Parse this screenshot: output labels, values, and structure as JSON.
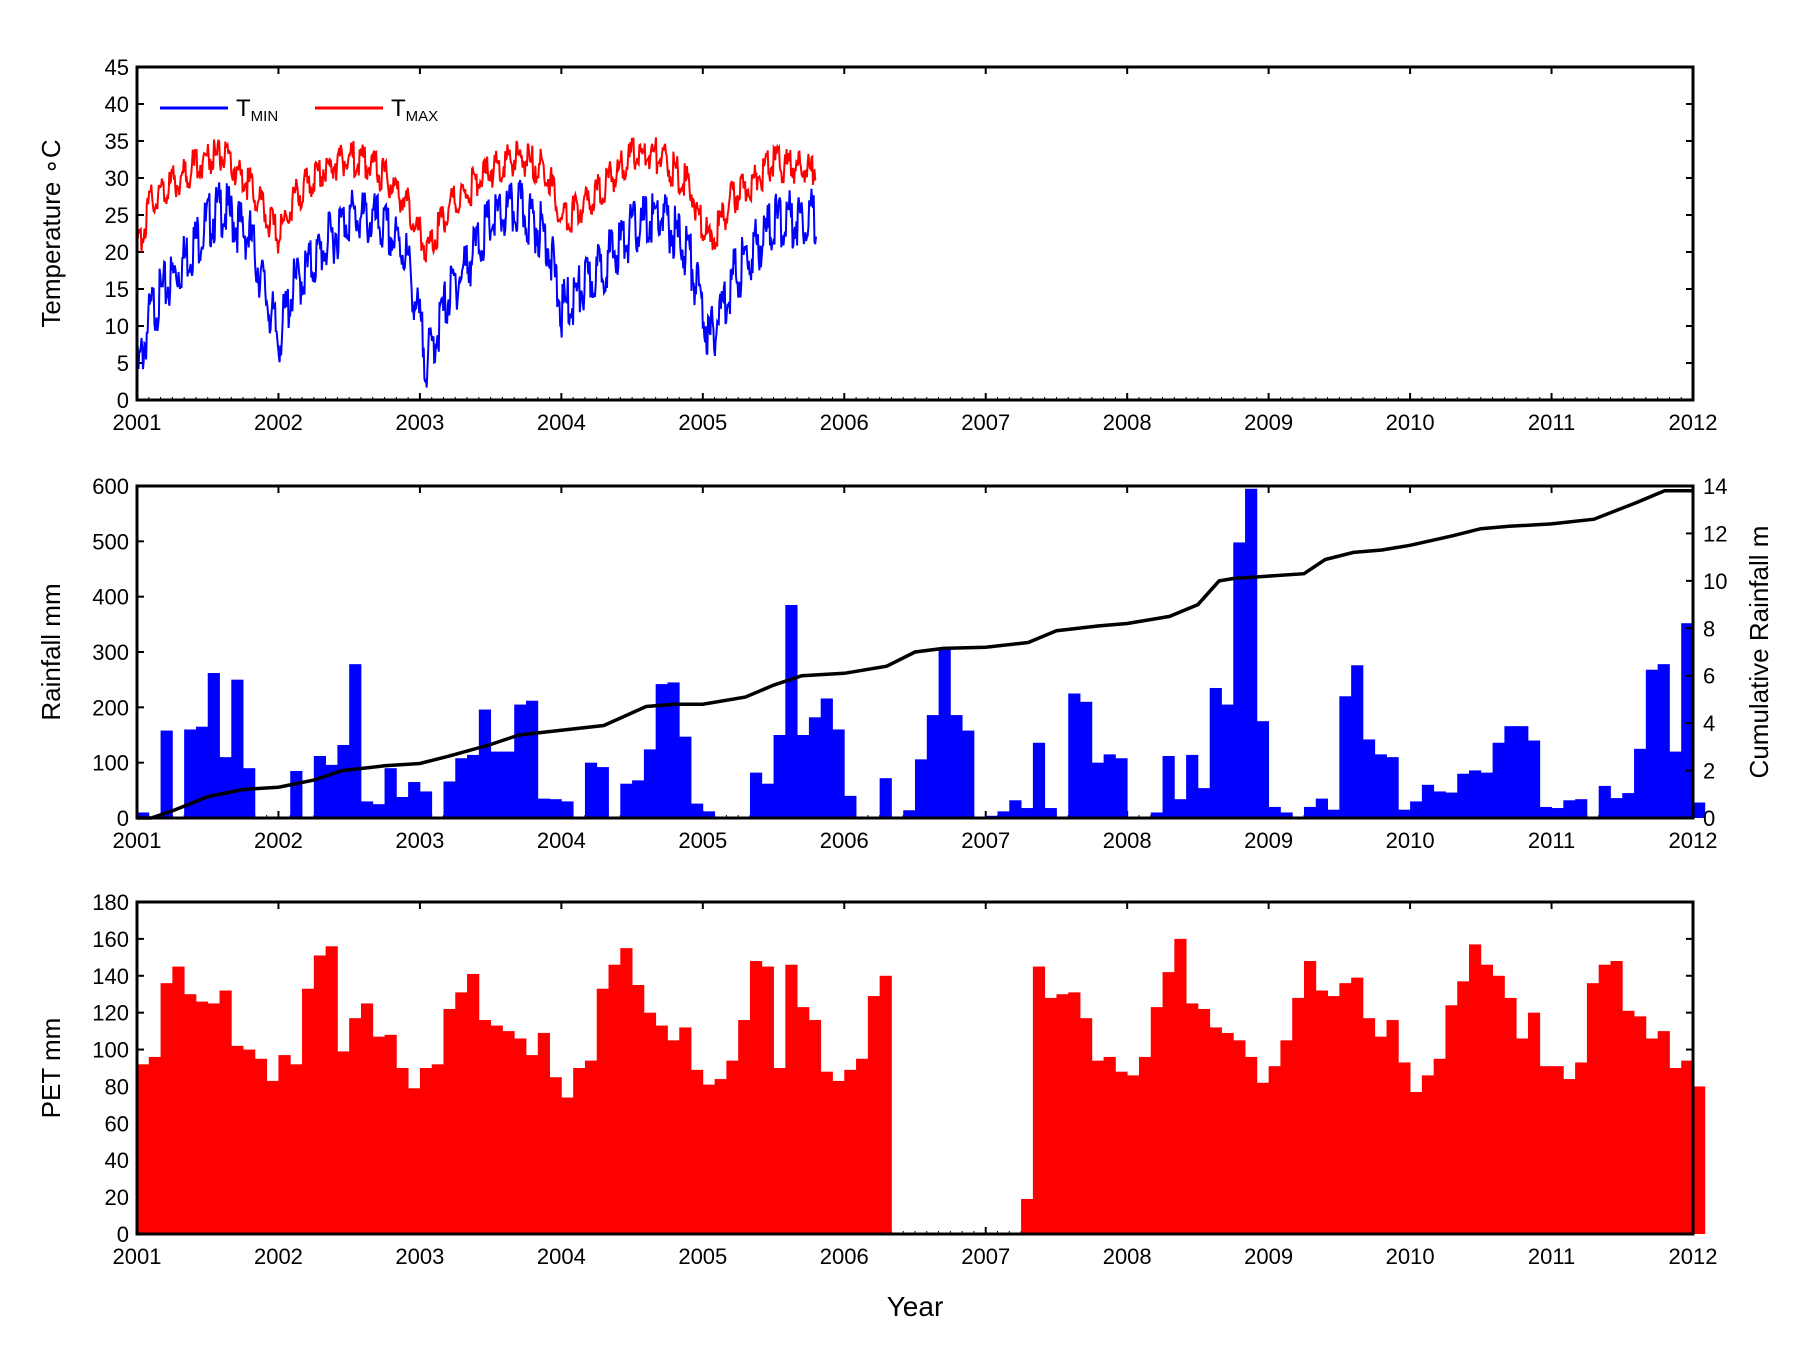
{
  "chart_data": [
    {
      "type": "line",
      "ylabel": "Temperature ∘C",
      "xlabel": "",
      "xlim": [
        2001,
        2012
      ],
      "ylim": [
        0,
        45
      ],
      "xticks": [
        "2001",
        "2002",
        "2003",
        "2004",
        "2005",
        "2006",
        "2007",
        "2008",
        "2009",
        "2010",
        "2011",
        "2012"
      ],
      "yticks": [
        "0",
        "5",
        "10",
        "15",
        "20",
        "25",
        "30",
        "35",
        "40",
        "45"
      ],
      "legend_position": "top-left",
      "data_gap": [
        2005.83,
        2007.17
      ],
      "series": [
        {
          "name": "T",
          "subscript": "MIN",
          "color": "#0000ff",
          "x": [
            2001.0,
            2001.1,
            2001.3,
            2001.5,
            2001.6,
            2001.8,
            2002.0,
            2002.1,
            2002.3,
            2002.5,
            2002.7,
            2002.9,
            2003.05,
            2003.2,
            2003.5,
            2003.7,
            2003.9,
            2004.0,
            2004.2,
            2004.5,
            2004.7,
            2004.9,
            2005.05,
            2005.2,
            2005.5,
            2005.8
          ],
          "values": [
            3,
            12,
            18,
            24,
            26,
            22,
            8,
            15,
            20,
            25,
            24,
            20,
            5,
            14,
            24,
            26,
            22,
            12,
            16,
            23,
            25,
            20,
            8,
            16,
            24,
            25
          ]
        },
        {
          "name": "T",
          "subscript": "MAX",
          "color": "#ff0000",
          "x": [
            2001.0,
            2001.1,
            2001.3,
            2001.5,
            2001.6,
            2001.8,
            2002.0,
            2002.1,
            2002.3,
            2002.5,
            2002.7,
            2002.9,
            2003.05,
            2003.2,
            2003.5,
            2003.7,
            2003.9,
            2004.0,
            2004.2,
            2004.5,
            2004.7,
            2004.9,
            2005.05,
            2005.2,
            2005.5,
            2005.8
          ],
          "values": [
            20,
            27,
            30,
            33,
            33,
            29,
            22,
            27,
            31,
            33,
            31,
            27,
            20,
            26,
            31,
            33,
            31,
            24,
            27,
            33,
            33,
            29,
            21,
            27,
            32,
            31
          ]
        }
      ]
    },
    {
      "type": "bar",
      "ylabel": "Rainfall mm",
      "y2label": "Cumulative Rainfall m",
      "xlim": [
        2001,
        2012
      ],
      "ylim": [
        0,
        600
      ],
      "y2lim": [
        0,
        14
      ],
      "xticks": [
        "2001",
        "2002",
        "2003",
        "2004",
        "2005",
        "2006",
        "2007",
        "2008",
        "2009",
        "2010",
        "2011",
        "2012"
      ],
      "yticks": [
        "0",
        "100",
        "200",
        "300",
        "400",
        "500",
        "600"
      ],
      "y2ticks": [
        "0",
        "2",
        "4",
        "6",
        "8",
        "10",
        "12",
        "14"
      ],
      "bar_color": "#0000ff",
      "line_color": "#000000",
      "bar_start": 2001.0,
      "months": [
        10,
        0,
        158,
        0,
        160,
        165,
        262,
        110,
        250,
        90,
        0,
        0,
        0,
        85,
        0,
        112,
        96,
        132,
        278,
        30,
        25,
        90,
        38,
        65,
        48,
        0,
        66,
        108,
        114,
        196,
        120,
        120,
        205,
        212,
        35,
        34,
        30,
        0,
        100,
        92,
        0,
        62,
        68,
        124,
        242,
        245,
        147,
        26,
        12,
        0,
        0,
        0,
        82,
        62,
        150,
        385,
        150,
        182,
        216,
        160,
        40,
        0,
        0,
        72,
        0,
        14,
        106,
        186,
        306,
        186,
        158,
        0,
        4,
        12,
        32,
        18,
        136,
        18,
        0,
        225,
        210,
        100,
        115,
        108,
        0,
        0,
        10,
        112,
        34,
        114,
        54,
        235,
        205,
        498,
        595,
        175,
        20,
        10,
        0,
        20,
        35,
        15,
        220,
        276,
        142,
        115,
        110,
        15,
        30,
        60,
        48,
        46,
        80,
        86,
        82,
        136,
        166,
        166,
        140,
        20,
        18,
        32,
        34,
        0,
        58,
        36,
        45,
        125,
        268,
        278,
        120,
        352,
        28
      ],
      "cumulative_x": [
        2001.0,
        2001.1,
        2001.25,
        2001.5,
        2001.75,
        2002.0,
        2002.25,
        2002.45,
        2002.6,
        2002.75,
        2003.0,
        2003.2,
        2003.5,
        2003.7,
        2004.0,
        2004.3,
        2004.45,
        2004.6,
        2004.8,
        2005.0,
        2005.3,
        2005.5,
        2005.7,
        2006.0,
        2006.3,
        2006.5,
        2006.7,
        2007.0,
        2007.3,
        2007.5,
        2007.8,
        2008.0,
        2008.3,
        2008.5,
        2008.65,
        2008.75,
        2009.0,
        2009.25,
        2009.4,
        2009.6,
        2009.8,
        2010.0,
        2010.3,
        2010.5,
        2010.7,
        2011.0,
        2011.3,
        2011.6,
        2011.8,
        2012.0
      ],
      "cumulative_values": [
        0,
        0,
        0.3,
        0.9,
        1.2,
        1.3,
        1.6,
        2.0,
        2.1,
        2.2,
        2.3,
        2.6,
        3.1,
        3.5,
        3.7,
        3.9,
        4.3,
        4.7,
        4.8,
        4.8,
        5.1,
        5.6,
        6.0,
        6.1,
        6.4,
        7.0,
        7.15,
        7.2,
        7.4,
        7.9,
        8.1,
        8.2,
        8.5,
        9.0,
        10.0,
        10.1,
        10.2,
        10.3,
        10.9,
        11.2,
        11.3,
        11.5,
        11.9,
        12.2,
        12.3,
        12.4,
        12.6,
        13.3,
        13.8,
        13.8
      ]
    },
    {
      "type": "bar",
      "xlabel": "Year",
      "ylabel": "PET mm",
      "xlim": [
        2001,
        2012
      ],
      "ylim": [
        0,
        180
      ],
      "xticks": [
        "2001",
        "2002",
        "2003",
        "2004",
        "2005",
        "2006",
        "2007",
        "2008",
        "2009",
        "2010",
        "2011",
        "2012"
      ],
      "yticks": [
        "0",
        "20",
        "40",
        "60",
        "80",
        "100",
        "120",
        "140",
        "160",
        "180"
      ],
      "bar_color": "#ff0000",
      "bar_start": 2001.0,
      "months": [
        92,
        96,
        136,
        145,
        130,
        126,
        125,
        132,
        102,
        100,
        95,
        83,
        97,
        92,
        133,
        151,
        156,
        99,
        117,
        125,
        107,
        108,
        90,
        79,
        90,
        92,
        122,
        131,
        141,
        116,
        113,
        110,
        106,
        97,
        109,
        85,
        74,
        90,
        94,
        133,
        146,
        155,
        135,
        120,
        113,
        105,
        112,
        89,
        81,
        84,
        94,
        116,
        148,
        145,
        90,
        146,
        123,
        116,
        88,
        83,
        89,
        95,
        129,
        140,
        0,
        0,
        0,
        0,
        0,
        0,
        0,
        0,
        0,
        0,
        0,
        19,
        145,
        128,
        130,
        131,
        117,
        94,
        96,
        88,
        86,
        96,
        123,
        142,
        160,
        125,
        122,
        112,
        109,
        105,
        96,
        82,
        91,
        105,
        128,
        148,
        132,
        129,
        136,
        139,
        117,
        107,
        116,
        93,
        77,
        86,
        95,
        124,
        137,
        157,
        146,
        140,
        128,
        106,
        120,
        91,
        91,
        84,
        93,
        136,
        146,
        148,
        121,
        118,
        106,
        110,
        90,
        94,
        80
      ]
    }
  ]
}
